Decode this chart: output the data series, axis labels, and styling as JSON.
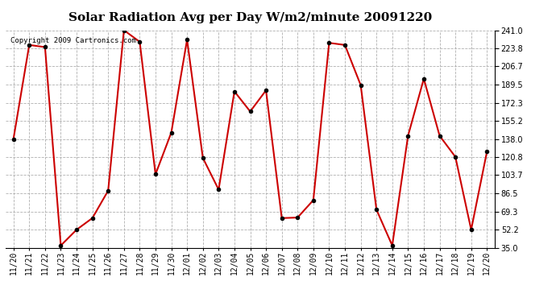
{
  "title": "Solar Radiation Avg per Day W/m2/minute 20091220",
  "copyright": "Copyright 2009 Cartronics.com",
  "labels": [
    "11/20",
    "11/21",
    "11/22",
    "11/23",
    "11/24",
    "11/25",
    "11/26",
    "11/27",
    "11/28",
    "11/29",
    "11/30",
    "12/01",
    "12/02",
    "12/03",
    "12/04",
    "12/05",
    "12/06",
    "12/07",
    "12/08",
    "12/09",
    "12/10",
    "12/11",
    "12/12",
    "12/13",
    "12/14",
    "12/15",
    "12/16",
    "12/17",
    "12/18",
    "12/19",
    "12/20"
  ],
  "values": [
    138.0,
    227.0,
    225.0,
    37.0,
    52.0,
    63.0,
    89.0,
    241.0,
    230.0,
    104.5,
    144.0,
    232.0,
    120.0,
    90.0,
    183.0,
    164.0,
    184.0,
    63.0,
    63.5,
    80.0,
    229.0,
    227.0,
    189.0,
    71.0,
    37.0,
    141.0,
    195.0,
    141.0,
    121.0,
    52.0,
    126.0
  ],
  "y_ticks": [
    35.0,
    52.2,
    69.3,
    86.5,
    103.7,
    120.8,
    138.0,
    155.2,
    172.3,
    189.5,
    206.7,
    223.8,
    241.0
  ],
  "line_color": "#cc0000",
  "marker_color": "#000000",
  "bg_color": "#ffffff",
  "grid_color": "#b0b0b0",
  "title_fontsize": 11,
  "tick_fontsize": 7,
  "copyright_fontsize": 6.5
}
